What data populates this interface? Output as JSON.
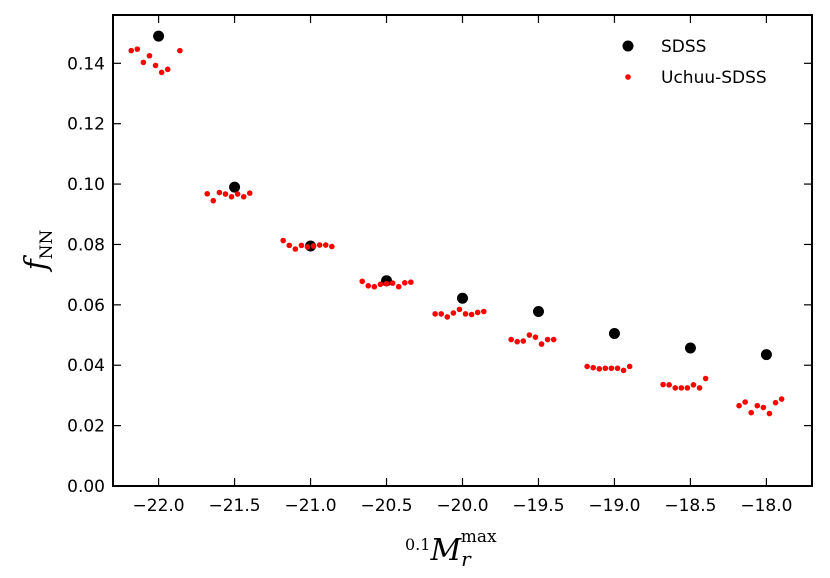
{
  "chart_data": {
    "type": "scatter",
    "xlabel": {
      "pre": "0.1",
      "main": "M",
      "sub": "r",
      "sup": "max"
    },
    "ylabel": {
      "main": "f",
      "sub": "NN"
    },
    "xlim": [
      -22.3,
      -17.7
    ],
    "ylim": [
      0.0,
      0.156
    ],
    "xticks": [
      -22.0,
      -21.5,
      -21.0,
      -20.5,
      -20.0,
      -19.5,
      -19.0,
      -18.5,
      -18.0
    ],
    "xtick_labels": [
      "−22.0",
      "−21.5",
      "−21.0",
      "−20.5",
      "−20.0",
      "−19.5",
      "−19.0",
      "−18.5",
      "−18.0"
    ],
    "yticks": [
      0.0,
      0.02,
      0.04,
      0.06,
      0.08,
      0.1,
      0.12,
      0.14
    ],
    "ytick_labels": [
      "0.00",
      "0.02",
      "0.04",
      "0.06",
      "0.08",
      "0.10",
      "0.12",
      "0.14"
    ],
    "grid": false,
    "legend_position": "top-right",
    "series": [
      {
        "name": "SDSS",
        "color": "#000000",
        "marker": "large-circle",
        "points": [
          [
            -22.0,
            0.149
          ],
          [
            -21.5,
            0.099
          ],
          [
            -21.0,
            0.0795
          ],
          [
            -20.5,
            0.068
          ],
          [
            -20.0,
            0.0622
          ],
          [
            -19.5,
            0.0578
          ],
          [
            -19.0,
            0.0505
          ],
          [
            -18.5,
            0.0457
          ],
          [
            -18.0,
            0.0435
          ]
        ]
      },
      {
        "name": "Uchuu-SDSS",
        "color": "#ff0000",
        "marker": "small-circle",
        "points": [
          [
            -22.18,
            0.1442
          ],
          [
            -22.14,
            0.1447
          ],
          [
            -22.1,
            0.1403
          ],
          [
            -22.06,
            0.1425
          ],
          [
            -22.02,
            0.1393
          ],
          [
            -21.98,
            0.137
          ],
          [
            -21.94,
            0.138
          ],
          [
            -21.86,
            0.1442
          ],
          [
            -21.68,
            0.0968
          ],
          [
            -21.64,
            0.0945
          ],
          [
            -21.6,
            0.0972
          ],
          [
            -21.56,
            0.0967
          ],
          [
            -21.52,
            0.0958
          ],
          [
            -21.48,
            0.0967
          ],
          [
            -21.44,
            0.0958
          ],
          [
            -21.4,
            0.097
          ],
          [
            -21.18,
            0.0813
          ],
          [
            -21.14,
            0.0797
          ],
          [
            -21.1,
            0.0785
          ],
          [
            -21.06,
            0.0797
          ],
          [
            -21.02,
            0.0792
          ],
          [
            -20.98,
            0.0795
          ],
          [
            -20.94,
            0.0798
          ],
          [
            -20.9,
            0.0798
          ],
          [
            -20.86,
            0.0793
          ],
          [
            -20.66,
            0.0678
          ],
          [
            -20.62,
            0.0663
          ],
          [
            -20.58,
            0.066
          ],
          [
            -20.54,
            0.0668
          ],
          [
            -20.5,
            0.067
          ],
          [
            -20.46,
            0.0672
          ],
          [
            -20.42,
            0.066
          ],
          [
            -20.38,
            0.0673
          ],
          [
            -20.34,
            0.0675
          ],
          [
            -20.18,
            0.057
          ],
          [
            -20.14,
            0.057
          ],
          [
            -20.1,
            0.056
          ],
          [
            -20.06,
            0.0573
          ],
          [
            -20.02,
            0.0585
          ],
          [
            -19.98,
            0.057
          ],
          [
            -19.94,
            0.0568
          ],
          [
            -19.9,
            0.0575
          ],
          [
            -19.86,
            0.0578
          ],
          [
            -19.68,
            0.0485
          ],
          [
            -19.64,
            0.0478
          ],
          [
            -19.6,
            0.048
          ],
          [
            -19.56,
            0.05
          ],
          [
            -19.52,
            0.0493
          ],
          [
            -19.48,
            0.047
          ],
          [
            -19.44,
            0.0485
          ],
          [
            -19.4,
            0.0485
          ],
          [
            -19.18,
            0.0396
          ],
          [
            -19.14,
            0.0392
          ],
          [
            -19.1,
            0.0388
          ],
          [
            -19.06,
            0.039
          ],
          [
            -19.02,
            0.039
          ],
          [
            -18.98,
            0.039
          ],
          [
            -18.94,
            0.0383
          ],
          [
            -18.9,
            0.0396
          ],
          [
            -18.68,
            0.0336
          ],
          [
            -18.64,
            0.0335
          ],
          [
            -18.6,
            0.0325
          ],
          [
            -18.56,
            0.0325
          ],
          [
            -18.52,
            0.0325
          ],
          [
            -18.48,
            0.0335
          ],
          [
            -18.44,
            0.0325
          ],
          [
            -18.4,
            0.0356
          ],
          [
            -18.18,
            0.0266
          ],
          [
            -18.14,
            0.0278
          ],
          [
            -18.1,
            0.0243
          ],
          [
            -18.06,
            0.0266
          ],
          [
            -18.02,
            0.026
          ],
          [
            -17.98,
            0.024
          ],
          [
            -17.94,
            0.0276
          ],
          [
            -17.9,
            0.0288
          ]
        ]
      }
    ]
  }
}
